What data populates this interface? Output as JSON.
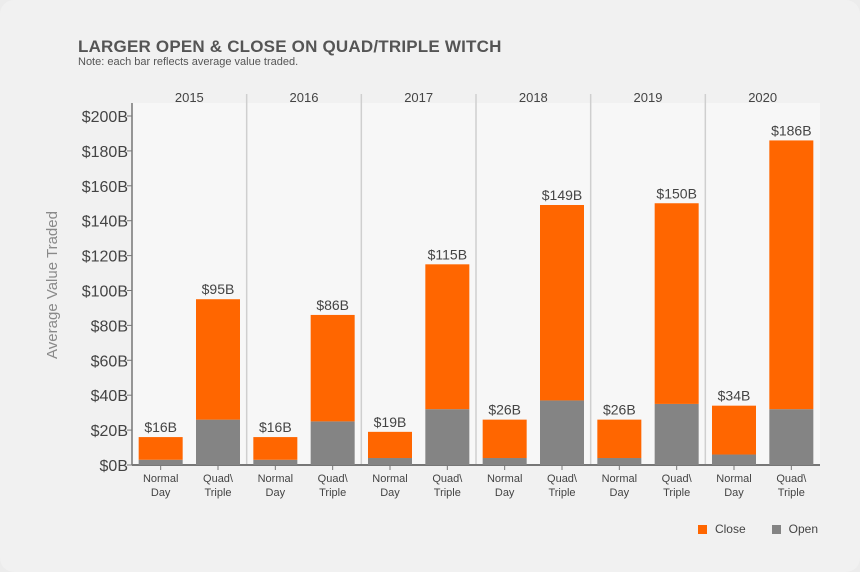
{
  "header": {
    "title": "LARGER OPEN & CLOSE ON QUAD/TRIPLE WITCH",
    "subtitle": "Note: each bar reflects average value traded."
  },
  "legend": {
    "close_label": "Close",
    "open_label": "Open"
  },
  "colors": {
    "close": "#ff6600",
    "open": "#848484",
    "panel": "#f7f7f7",
    "axis": "#777777"
  },
  "chart_data": {
    "type": "bar",
    "stacked": true,
    "title": "LARGER OPEN & CLOSE ON QUAD/TRIPLE WITCH",
    "subtitle": "Note: each bar reflects average value traded.",
    "ylabel": "Average Value Traded",
    "ylim": [
      0,
      200
    ],
    "yticks": [
      "$0B",
      "$20B",
      "$40B",
      "$60B",
      "$80B",
      "$100B",
      "$120B",
      "$140B",
      "$160B",
      "$180B",
      "$200B"
    ],
    "facets": [
      "2015",
      "2016",
      "2017",
      "2018",
      "2019",
      "2020"
    ],
    "categories": [
      [
        "Normal",
        "Day"
      ],
      [
        "Quad\\",
        "Triple"
      ]
    ],
    "series": [
      {
        "name": "Open",
        "values": [
          [
            3,
            26
          ],
          [
            3,
            25
          ],
          [
            4,
            32
          ],
          [
            4,
            37
          ],
          [
            4,
            35
          ],
          [
            6,
            32
          ]
        ]
      },
      {
        "name": "Close",
        "values": [
          [
            13,
            69
          ],
          [
            13,
            61
          ],
          [
            15,
            83
          ],
          [
            22,
            112
          ],
          [
            22,
            115
          ],
          [
            28,
            154
          ]
        ]
      }
    ],
    "totals": [
      [
        16,
        95
      ],
      [
        16,
        86
      ],
      [
        19,
        115
      ],
      [
        26,
        149
      ],
      [
        26,
        150
      ],
      [
        34,
        186
      ]
    ],
    "total_labels": [
      [
        "$16B",
        "$95B"
      ],
      [
        "$16B",
        "$86B"
      ],
      [
        "$19B",
        "$115B"
      ],
      [
        "$26B",
        "$149B"
      ],
      [
        "$26B",
        "$150B"
      ],
      [
        "$34B",
        "$186B"
      ]
    ],
    "grid": false,
    "legend_position": "bottom-right"
  }
}
